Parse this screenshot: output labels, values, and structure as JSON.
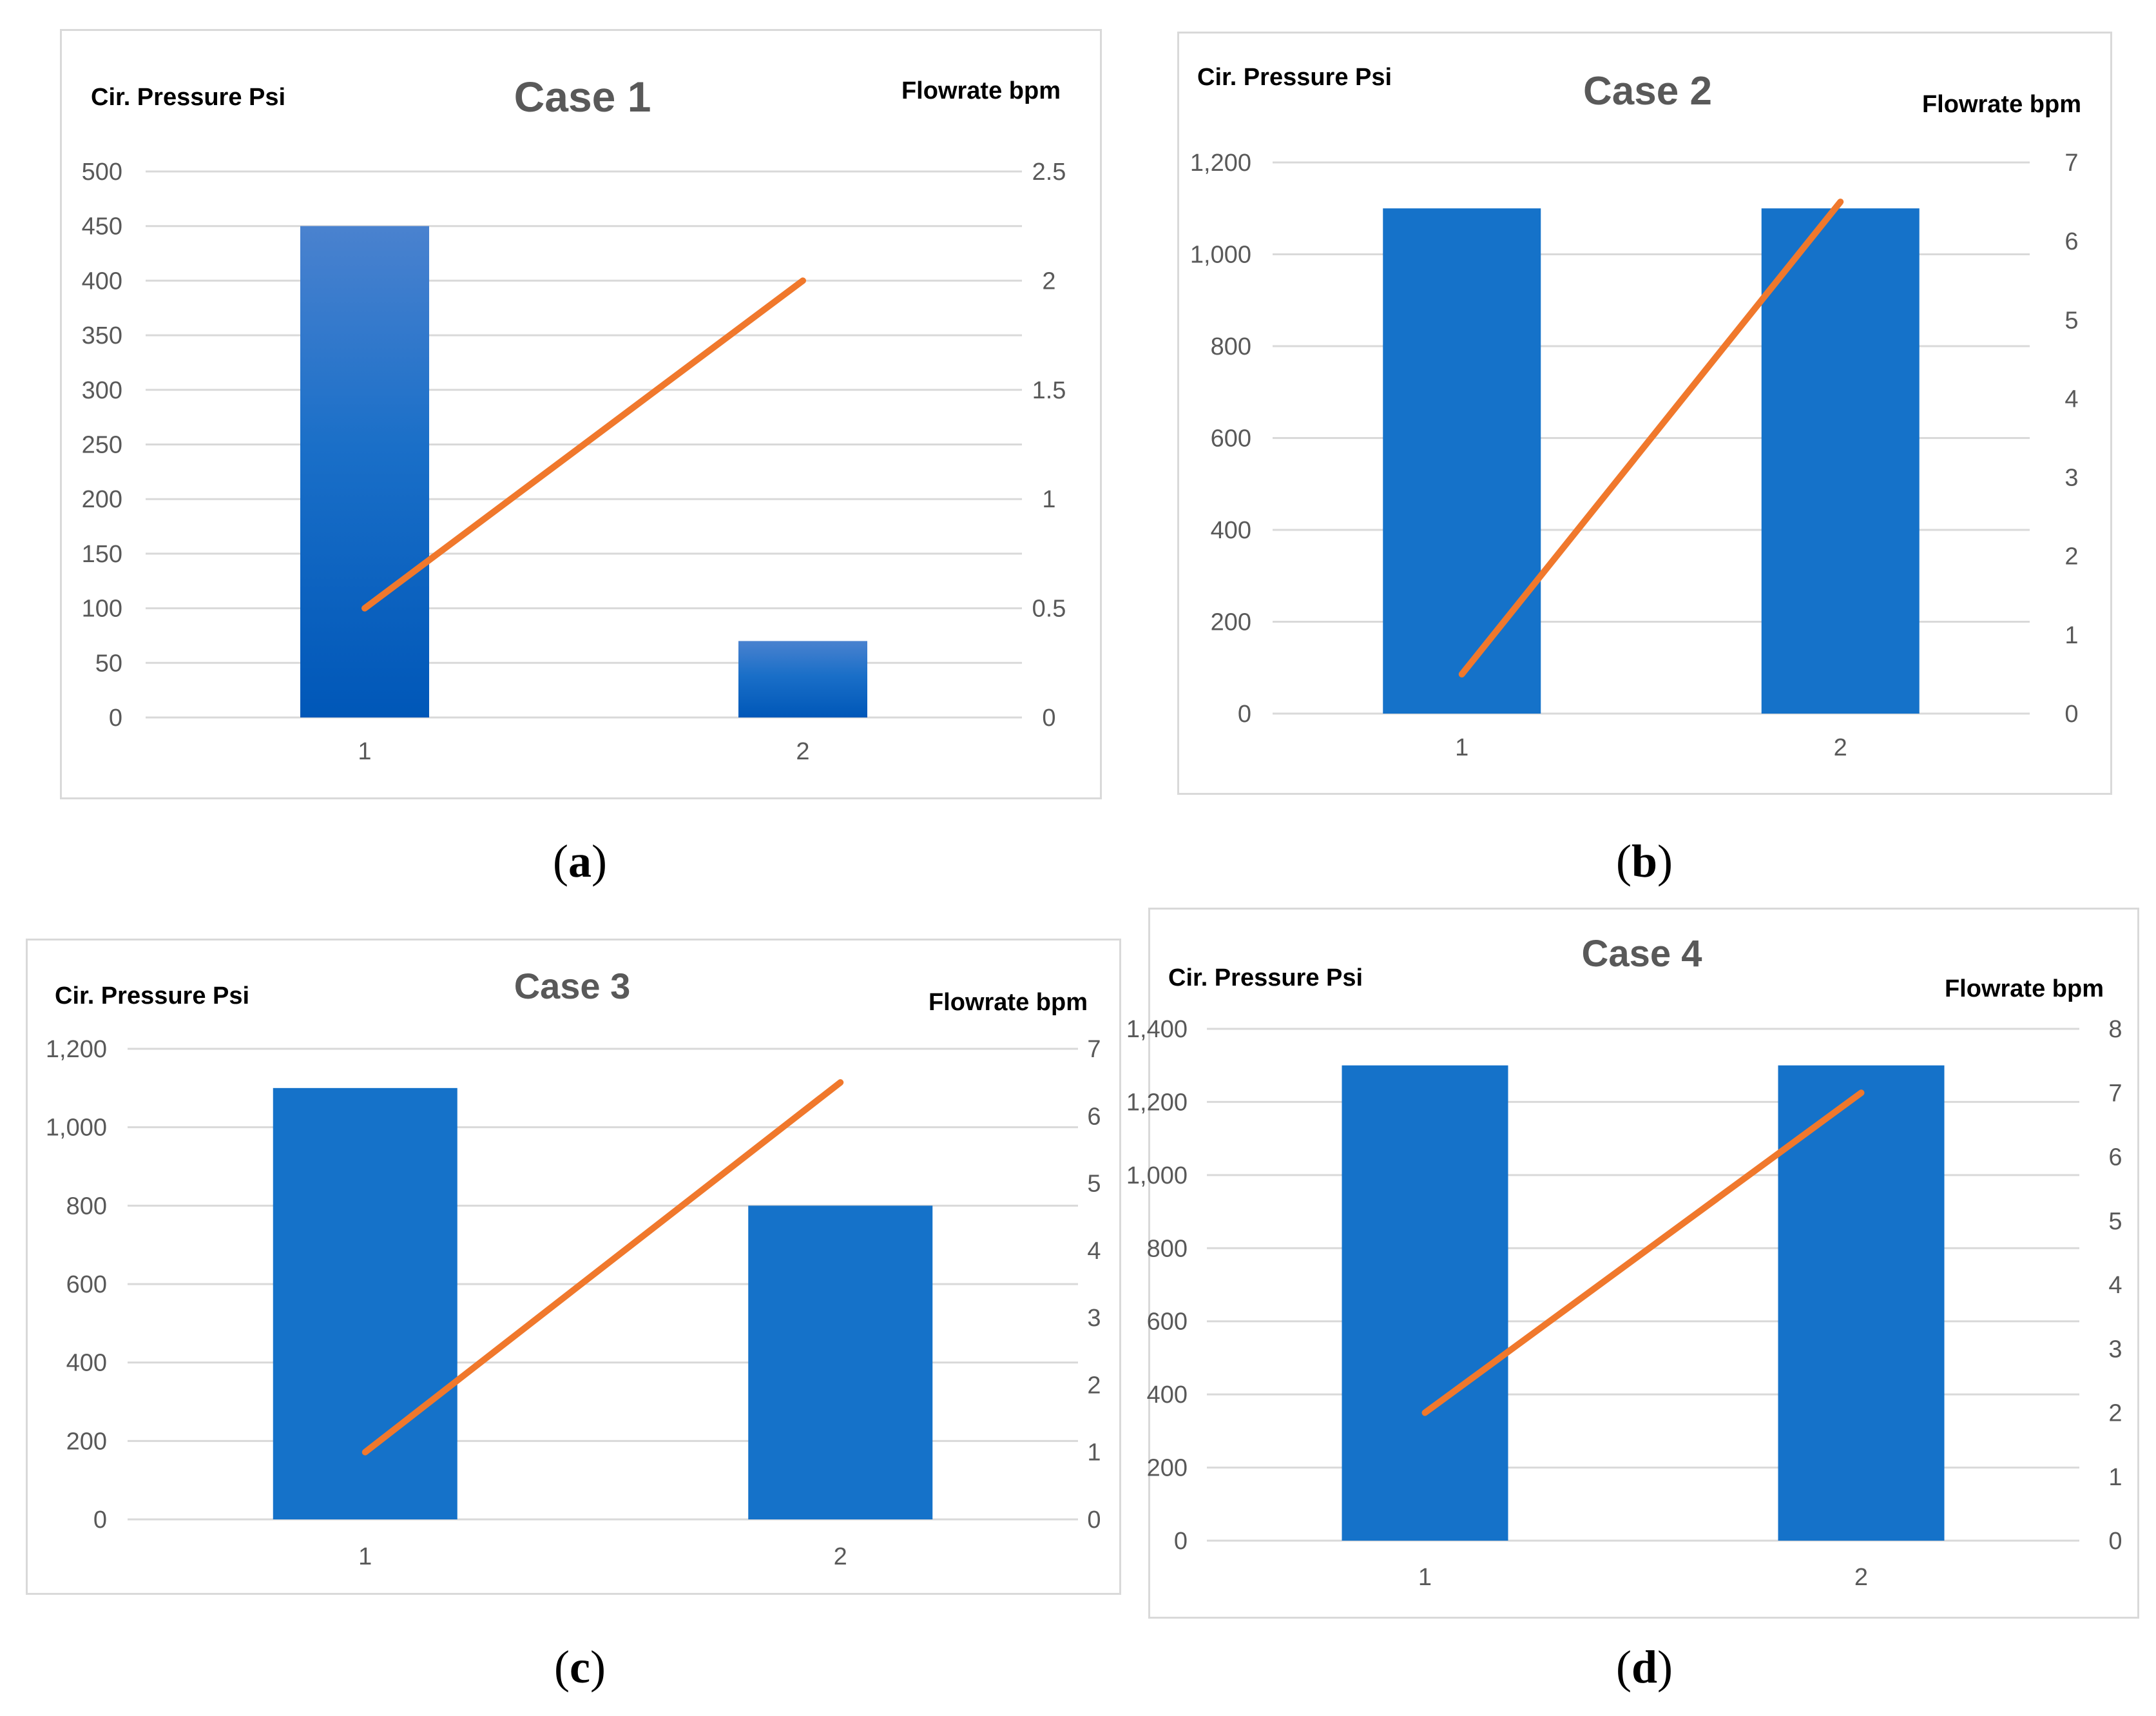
{
  "chart_data": [
    {
      "type": "bar+line",
      "title": "Case 1",
      "caption": "a",
      "ylabel_left": "Cir. Pressure Psi",
      "ylabel_right": "Flowrate bpm",
      "categories": [
        "1",
        "2"
      ],
      "series": [
        {
          "name": "Cir. Pressure Psi",
          "kind": "bar",
          "axis": "left",
          "values": [
            450,
            70
          ]
        },
        {
          "name": "Flowrate bpm",
          "kind": "line",
          "axis": "right",
          "values": [
            0.5,
            2
          ]
        }
      ],
      "ylim_left": [
        0,
        500
      ],
      "ylim_right": [
        0,
        2.5
      ],
      "yticks_left": [
        "0",
        "50",
        "100",
        "150",
        "200",
        "250",
        "300",
        "350",
        "400",
        "450",
        "500"
      ],
      "yticks_right": [
        "0",
        "0.5",
        "1",
        "1.5",
        "2",
        "2.5"
      ],
      "bar_color": "#1565c0",
      "line_color": "#f0782c"
    },
    {
      "type": "bar+line",
      "title": "Case 2",
      "caption": "b",
      "ylabel_left": "Cir. Pressure Psi",
      "ylabel_right": "Flowrate bpm",
      "categories": [
        "1",
        "2"
      ],
      "series": [
        {
          "name": "Cir. Pressure Psi",
          "kind": "bar",
          "axis": "left",
          "values": [
            1100,
            1100
          ]
        },
        {
          "name": "Flowrate bpm",
          "kind": "line",
          "axis": "right",
          "values": [
            0.5,
            6.5
          ]
        }
      ],
      "ylim_left": [
        0,
        1200
      ],
      "ylim_right": [
        0,
        7
      ],
      "yticks_left": [
        "0",
        "200",
        "400",
        "600",
        "800",
        "1,000",
        "1,200"
      ],
      "yticks_right": [
        "0",
        "1",
        "2",
        "3",
        "4",
        "5",
        "6",
        "7"
      ],
      "bar_color": "#1572c9",
      "line_color": "#f0782c"
    },
    {
      "type": "bar+line",
      "title": "Case 3",
      "caption": "c",
      "ylabel_left": "Cir. Pressure Psi",
      "ylabel_right": "Flowrate bpm",
      "categories": [
        "1",
        "2"
      ],
      "series": [
        {
          "name": "Cir. Pressure Psi",
          "kind": "bar",
          "axis": "left",
          "values": [
            1100,
            800
          ]
        },
        {
          "name": "Flowrate bpm",
          "kind": "line",
          "axis": "right",
          "values": [
            1,
            6.5
          ]
        }
      ],
      "ylim_left": [
        0,
        1200
      ],
      "ylim_right": [
        0,
        7
      ],
      "yticks_left": [
        "0",
        "200",
        "400",
        "600",
        "800",
        "1,000",
        "1,200"
      ],
      "yticks_right": [
        "0",
        "1",
        "2",
        "3",
        "4",
        "5",
        "6",
        "7"
      ],
      "bar_color": "#1572c9",
      "line_color": "#f0782c"
    },
    {
      "type": "bar+line",
      "title": "Case 4",
      "caption": "d",
      "ylabel_left": "Cir. Pressure Psi",
      "ylabel_right": "Flowrate bpm",
      "categories": [
        "1",
        "2"
      ],
      "series": [
        {
          "name": "Cir. Pressure Psi",
          "kind": "bar",
          "axis": "left",
          "values": [
            1300,
            1300
          ]
        },
        {
          "name": "Flowrate bpm",
          "kind": "line",
          "axis": "right",
          "values": [
            2,
            7
          ]
        }
      ],
      "ylim_left": [
        0,
        1400
      ],
      "ylim_right": [
        0,
        8
      ],
      "yticks_left": [
        "0",
        "200",
        "400",
        "600",
        "800",
        "1,000",
        "1,200",
        "1,400"
      ],
      "yticks_right": [
        "0",
        "1",
        "2",
        "3",
        "4",
        "5",
        "6",
        "7",
        "8"
      ],
      "bar_color": "#1572c9",
      "line_color": "#f0782c"
    }
  ]
}
